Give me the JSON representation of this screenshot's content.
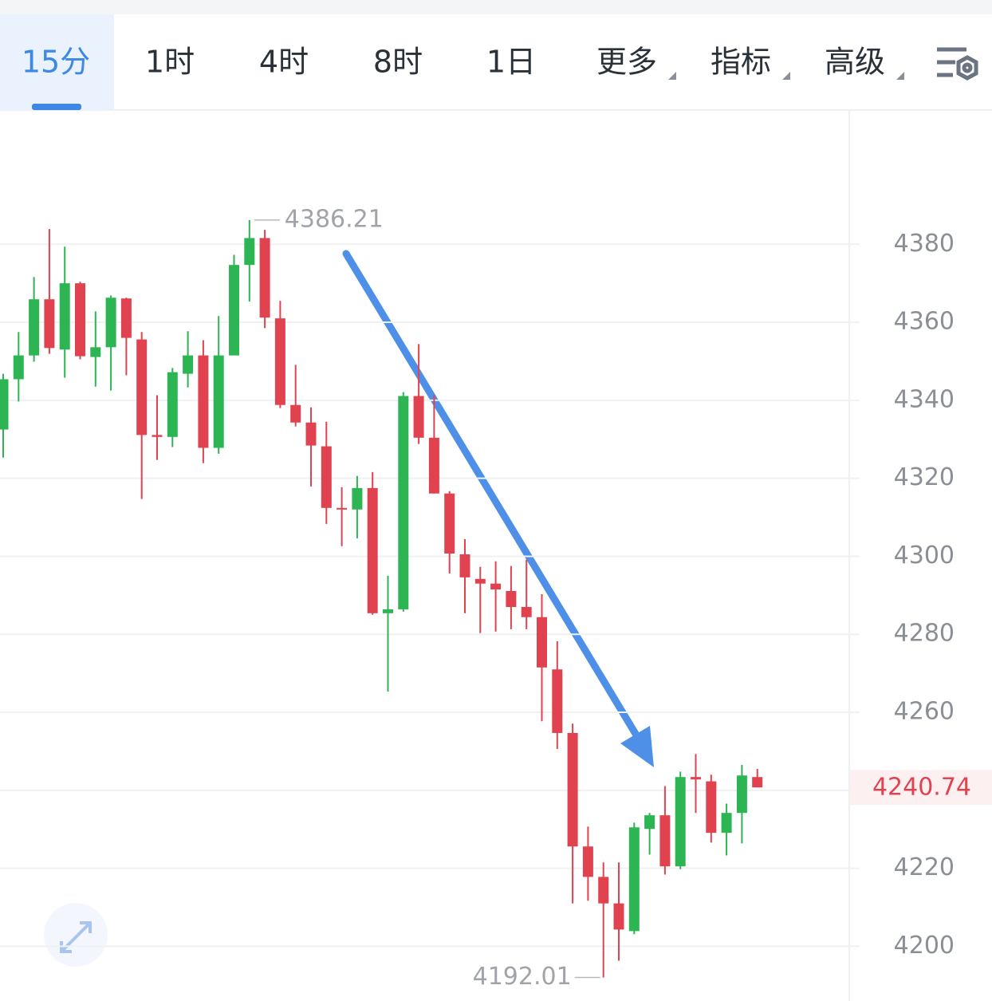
{
  "tabs": [
    "15分",
    "1时",
    "4时",
    "8时",
    "1日",
    "更多",
    "指标",
    "高级"
  ],
  "active_tab": 0,
  "chart_data": {
    "type": "candlestick",
    "up_color": "#2db553",
    "down_color": "#e0434f",
    "ylim": [
      4187,
      4414
    ],
    "yticks": [
      4200,
      4220,
      4240,
      4260,
      4280,
      4300,
      4320,
      4340,
      4360,
      4380
    ],
    "grid": true,
    "open": [
      4332.5,
      4345.4,
      4351.5,
      4365.9,
      4353.0,
      4370.0,
      4351.1,
      4353.6,
      4366.1,
      4355.6,
      4331.1,
      4330.6,
      4346.8,
      4351.5,
      4327.8,
      4351.5,
      4374.7,
      4381.6,
      4361.0,
      4338.8,
      4334.3,
      4328.2,
      4312.4,
      4312.0,
      4317.5,
      4285.4,
      4286.4,
      4341.1,
      4330.4,
      4316.1,
      4300.5,
      4294.2,
      4293.0,
      4291.1,
      4287.0,
      4284.4,
      4271.0,
      4254.7,
      4225.6,
      4217.8,
      4211.0,
      4203.9,
      4230.1,
      4233.6,
      4220.5,
      4243.4,
      4242.3,
      4229.1,
      4234.2,
      4243.4
    ],
    "high": [
      4346.8,
      4357.5,
      4371.6,
      4383.9,
      4379.4,
      4370.4,
      4362.8,
      4366.9,
      4366.3,
      4357.5,
      4341.3,
      4348.3,
      4357.7,
      4355.4,
      4361.6,
      4377.3,
      4386.21,
      4383.7,
      4365.5,
      4349.1,
      4338.2,
      4334.5,
      4317.7,
      4320.6,
      4321.6,
      4295.0,
      4342.1,
      4354.4,
      4341.3,
      4316.7,
      4304.4,
      4297.3,
      4298.7,
      4297.5,
      4299.1,
      4290.3,
      4278.2,
      4257.1,
      4230.7,
      4221.5,
      4221.5,
      4231.7,
      4234.2,
      4241.1,
      4244.8,
      4249.3,
      4244.0,
      4236.6,
      4246.5,
      4245.5
    ],
    "low": [
      4325.3,
      4339.7,
      4349.9,
      4351.9,
      4345.8,
      4350.5,
      4343.5,
      4342.5,
      4346.4,
      4314.7,
      4324.7,
      4328.0,
      4343.3,
      4323.9,
      4326.3,
      4351.5,
      4365.3,
      4358.5,
      4338.0,
      4333.3,
      4317.9,
      4308.3,
      4302.6,
      4304.6,
      4285.0,
      4265.3,
      4285.8,
      4328.8,
      4316.1,
      4295.6,
      4285.4,
      4280.3,
      4280.7,
      4281.3,
      4281.3,
      4257.7,
      4250.6,
      4211.0,
      4211.7,
      4192.01,
      4196.3,
      4203.1,
      4223.5,
      4218.4,
      4219.8,
      4234.2,
      4226.6,
      4223.3,
      4226.4,
      4240.74
    ],
    "close": [
      4345.4,
      4351.5,
      4365.9,
      4353.4,
      4370.0,
      4351.3,
      4353.6,
      4366.3,
      4356.0,
      4331.1,
      4330.6,
      4347.2,
      4351.5,
      4327.8,
      4351.5,
      4374.7,
      4381.6,
      4361.2,
      4338.8,
      4334.3,
      4328.4,
      4312.4,
      4312.0,
      4317.5,
      4285.4,
      4286.4,
      4341.1,
      4330.4,
      4316.1,
      4300.7,
      4294.6,
      4293.0,
      4291.5,
      4287.0,
      4284.4,
      4271.5,
      4254.7,
      4225.6,
      4217.8,
      4211.0,
      4204.3,
      4230.5,
      4233.6,
      4220.5,
      4243.4,
      4242.8,
      4229.1,
      4234.2,
      4243.8,
      4240.74
    ]
  }
}
